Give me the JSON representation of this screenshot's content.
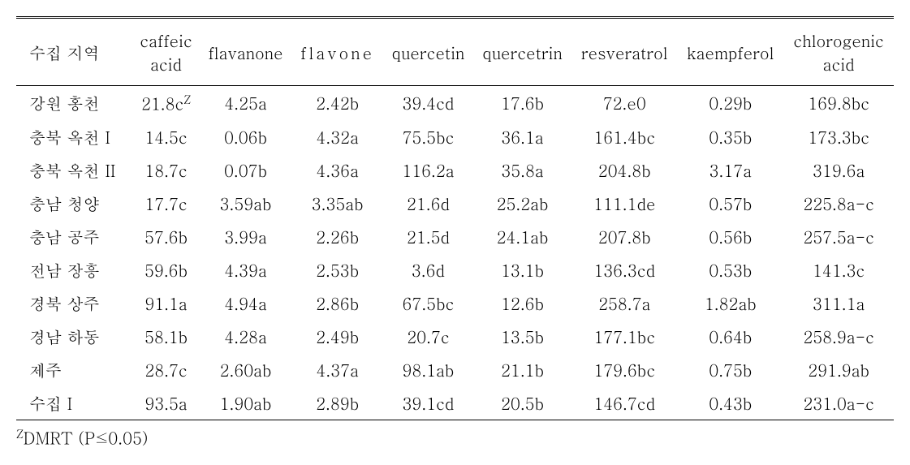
{
  "table": {
    "columns": [
      {
        "label": "수집 지역",
        "align": "left"
      },
      {
        "label_line1": "caffeic",
        "label_line2": "acid"
      },
      {
        "label": "flavanone"
      },
      {
        "label": "flavone",
        "spaced": true
      },
      {
        "label": "quercetin"
      },
      {
        "label": "quercetrin",
        "condensed": true
      },
      {
        "label": "resveratrol",
        "condensed": true
      },
      {
        "label": "kaempferol",
        "condensed": true
      },
      {
        "label_line1": "chlorogenic",
        "label_line2": "acid",
        "condensed": true
      }
    ],
    "rows": [
      {
        "region": "강원 홍천",
        "values": [
          "21.8c",
          "4.25a",
          "2.42b",
          "39.4cd",
          "17.6b",
          "72.e0",
          "0.29b",
          "169.8bc"
        ],
        "super": "Z"
      },
      {
        "region": "충북 옥천 I",
        "values": [
          "14.5c",
          "0.06b",
          "4.32a",
          "75.5bc",
          "36.1a",
          "161.4bc",
          "0.35b",
          "173.3bc"
        ]
      },
      {
        "region": "충북 옥천 II",
        "values": [
          "18.7c",
          "0.07b",
          "4.36a",
          "116.2a",
          "35.8a",
          "204.8b",
          "3.17a",
          "319.6a"
        ]
      },
      {
        "region": "충남 청양",
        "values": [
          "17.7c",
          "3.59ab",
          "3.35ab",
          "21.6d",
          "25.2ab",
          "111.1de",
          "0.57b",
          "225.8a-c"
        ]
      },
      {
        "region": "충남 공주",
        "values": [
          "57.6b",
          "3.99a",
          "2.26b",
          "21.5d",
          "24.1ab",
          "207.8b",
          "0.56b",
          "257.5a-c"
        ]
      },
      {
        "region": "전남 장흥",
        "values": [
          "59.6b",
          "4.39a",
          "2.53b",
          "3.6d",
          "13.1b",
          "136.3cd",
          "0.53b",
          "141.3c"
        ]
      },
      {
        "region": "경북 상주",
        "values": [
          "91.1a",
          "4.94a",
          "2.86b",
          "67.5bc",
          "12.6b",
          "258.7a",
          "1.82ab",
          "311.1a"
        ]
      },
      {
        "region": "경남 하동",
        "values": [
          "58.1b",
          "4.28a",
          "2.49b",
          "20.7c",
          "13.5b",
          "177.1bc",
          "0.64b",
          "258.9a-c"
        ]
      },
      {
        "region": "제주",
        "values": [
          "28.7c",
          "2.60ab",
          "4.37a",
          "98.1ab",
          "21.1b",
          "179.6bc",
          "0.75b",
          "291.9ab"
        ]
      },
      {
        "region": "수집 I",
        "values": [
          "93.5a",
          "1.90ab",
          "2.89b",
          "39.1cd",
          "20.5b",
          "146.7cd",
          "0.43b",
          "231.0a-c"
        ]
      }
    ],
    "footnote": {
      "super": "Z",
      "text": "DMRT (P≤0.05)"
    }
  }
}
